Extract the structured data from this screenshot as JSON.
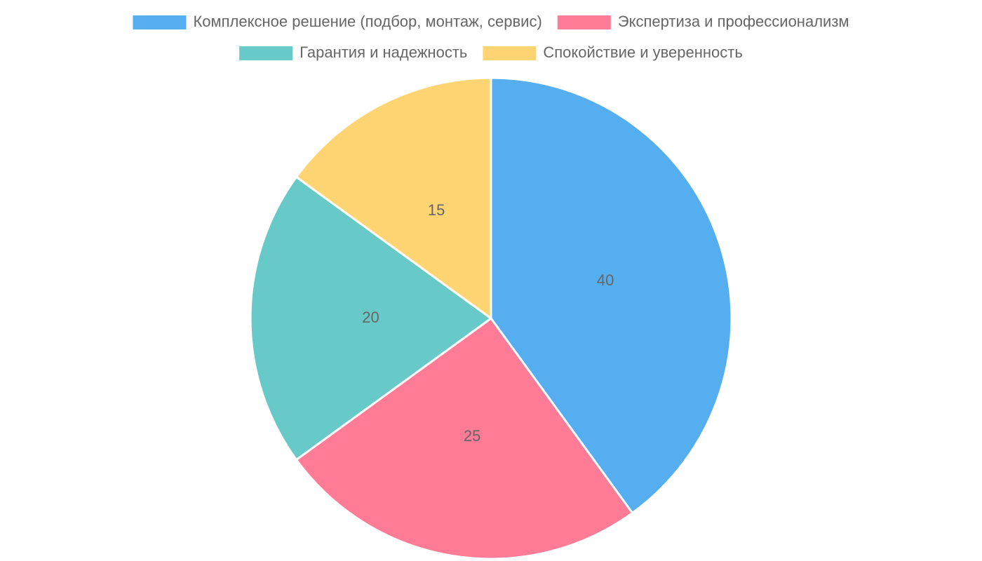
{
  "chart_data": {
    "type": "pie",
    "categories": [
      "Комплексное решение (подбор, монтаж, сервис)",
      "Экспертиза и профессионализм",
      "Гарантия и надежность",
      "Спокойствие и уверенность"
    ],
    "values": [
      40,
      25,
      20,
      15
    ],
    "colors": [
      "#55aeef",
      "#ff7b96",
      "#68c9c9",
      "#fed572"
    ],
    "legend": "top"
  }
}
